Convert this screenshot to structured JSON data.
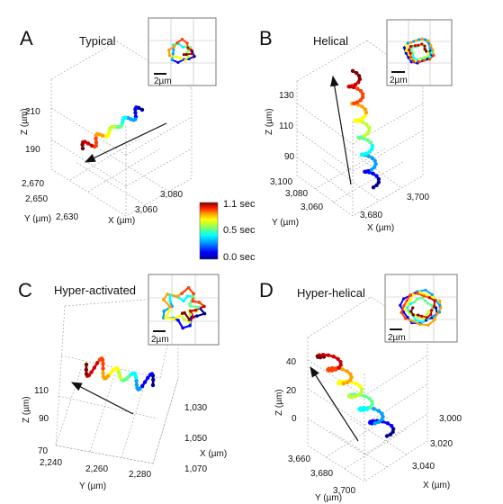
{
  "chart_data": [
    {
      "type": "scatter",
      "panel": "A",
      "title": "Typical",
      "xlabel": "X (µm)",
      "ylabel": "Y (µm)",
      "zlabel": "Z (µm)",
      "xticks": [
        "3,060",
        "3,080"
      ],
      "yticks": [
        "2,630",
        "2,650",
        "2,670"
      ],
      "zticks": [
        "190",
        "210"
      ],
      "inset_scale": "2µm",
      "trajectory": "zig-zag path along a straight axis, arrow shows direction of travel"
    },
    {
      "type": "scatter",
      "panel": "B",
      "title": "Helical",
      "xlabel": "X (µm)",
      "ylabel": "Y (µm)",
      "zlabel": "Z (µm)",
      "xticks": [
        "3,680",
        "3,700"
      ],
      "yticks": [
        "3,060",
        "3,080",
        "3,100"
      ],
      "zticks": [
        "90",
        "110",
        "130"
      ],
      "inset_scale": "2µm",
      "trajectory": "tight helix rising vertically"
    },
    {
      "type": "scatter",
      "panel": "C",
      "title": "Hyper-activated",
      "xlabel": "X (µm)",
      "ylabel": "Y (µm)",
      "zlabel": "Z (µm)",
      "xticks": [
        "1,030",
        "1,050",
        "1,070"
      ],
      "yticks": [
        "2,240",
        "2,260",
        "2,280"
      ],
      "zticks": [
        "70",
        "90",
        "110"
      ],
      "inset_scale": "2µm",
      "trajectory": "large irregular swings"
    },
    {
      "type": "scatter",
      "panel": "D",
      "title": "Hyper-helical",
      "xlabel": "X (µm)",
      "ylabel": "Y (µm)",
      "zlabel": "Z (µm)",
      "xticks": [
        "3,000",
        "3,020",
        "3,040"
      ],
      "yticks": [
        "3,660",
        "3,680",
        "3,700"
      ],
      "zticks": [
        "0",
        "20",
        "40"
      ],
      "inset_scale": "2µm",
      "trajectory": "wide helix"
    }
  ],
  "colorbar": {
    "labels": [
      "1.1 sec",
      "0.5 sec",
      "0.0 sec"
    ],
    "colors": [
      "#000090",
      "#0000ff",
      "#00a0ff",
      "#00ffff",
      "#60ff90",
      "#c0ff30",
      "#ffff00",
      "#ffa000",
      "#ff4000",
      "#d00000",
      "#800000"
    ]
  }
}
